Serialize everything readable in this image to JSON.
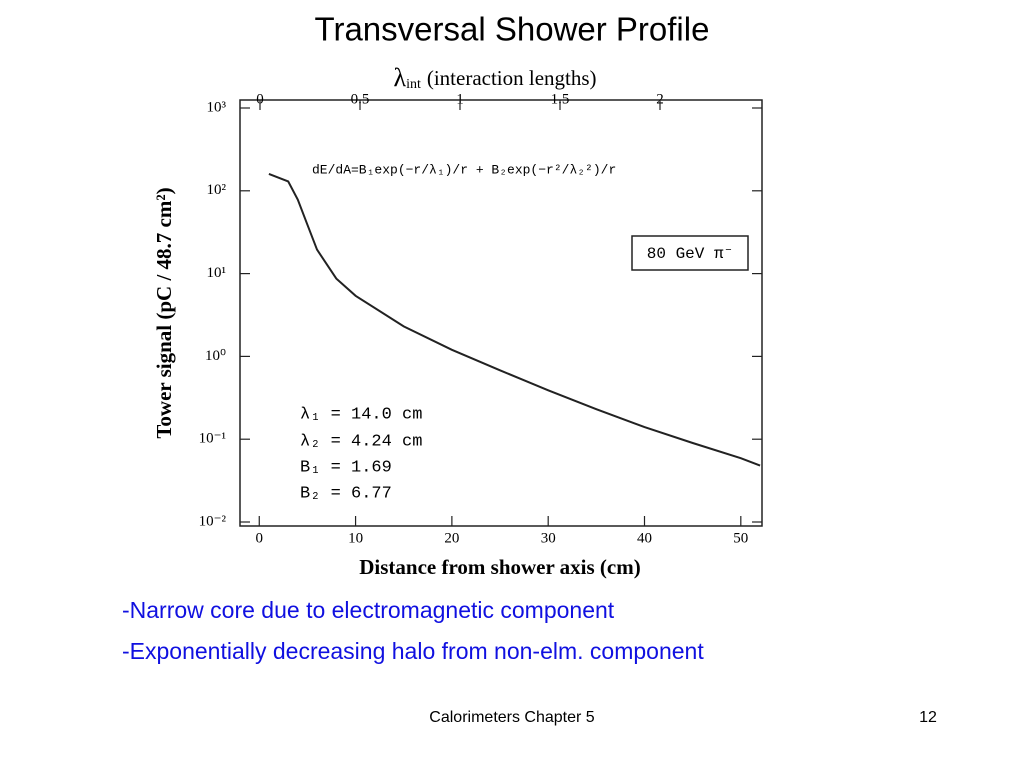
{
  "slide_title": "Transversal Shower Profile",
  "chart_data": {
    "type": "line",
    "x_label": "Distance from shower axis (cm)",
    "y_label": "Tower signal (pC / 48.7 cm²)",
    "x2_label": {
      "symbol": "λ",
      "subscript": "int",
      "text": "(interaction lengths)"
    },
    "formula": "dE/dA=B₁exp(−r/λ₁)/r + B₂exp(−r²/λ₂²)/r",
    "legend_box": "80 GeV π⁻",
    "parameters": [
      "λ₁ = 14.0 cm",
      "λ₂ = 4.24 cm",
      "B₁ = 1.69",
      "B₂ = 6.77"
    ],
    "x": [
      1,
      3,
      4,
      5,
      6,
      8,
      10,
      15,
      20,
      25,
      30,
      35,
      40,
      45,
      50,
      52
    ],
    "values": [
      160,
      130,
      78,
      39,
      19.5,
      8.7,
      5.4,
      2.3,
      1.2,
      0.68,
      0.39,
      0.23,
      0.14,
      0.09,
      0.059,
      0.048
    ],
    "color": "#222222",
    "xlim": [
      -2,
      52.2
    ],
    "xticks": [
      0,
      10,
      20,
      30,
      40,
      50
    ],
    "ylim": [
      0.01,
      1000
    ],
    "ylog": true,
    "yticks": [
      {
        "value": 1000,
        "label": "10³"
      },
      {
        "value": 100,
        "label": "10²"
      },
      {
        "value": 10,
        "label": "10¹"
      },
      {
        "value": 1,
        "label": "10⁰"
      },
      {
        "value": 0.1,
        "label": "10⁻¹"
      },
      {
        "value": 0.01,
        "label": "10⁻²"
      }
    ],
    "x2lim": [
      -0.1,
      2.51
    ],
    "x2ticks": [
      0,
      0.5,
      1,
      1.5,
      2
    ]
  },
  "bullets": [
    "-Narrow core due to electromagnetic component",
    "-Exponentially decreasing halo from non-elm. component"
  ],
  "footer": "Calorimeters Chapter 5",
  "page_number": "12"
}
